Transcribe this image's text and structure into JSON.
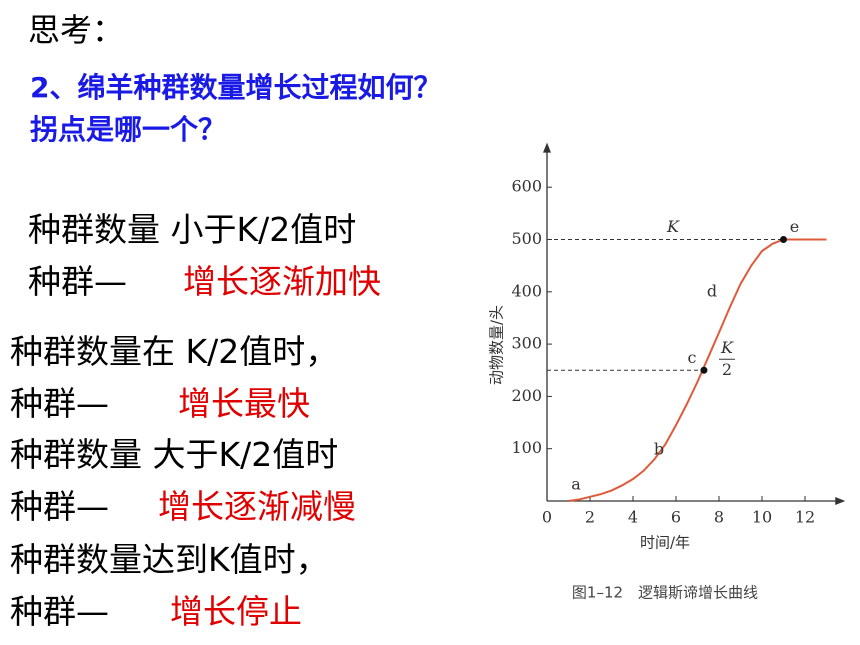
{
  "heading": "思考：",
  "question": [
    "2、绵羊种群数量增长过程如何？",
    "拐点是哪一个？"
  ],
  "statements": [
    {
      "condition": "种群数量 小于K/2值时",
      "prefix": "种群—",
      "result": "增长逐渐加快"
    },
    {
      "condition": "种群数量在 K/2值时，",
      "prefix": "种群—",
      "result": "增长最快"
    },
    {
      "condition": "种群数量 大于K/2值时",
      "prefix": "种群—",
      "result": "增长逐渐减慢"
    },
    {
      "condition": "种群数量达到K值时，",
      "prefix": "种群—",
      "result": "增长停止"
    }
  ],
  "chart_data": {
    "type": "line",
    "x_label": "时间/年",
    "y_label": "动物数量/头",
    "caption": "图1–12　逻辑斯谛增长曲线",
    "x": [
      1,
      1.5,
      2,
      2.5,
      3,
      3.5,
      4,
      4.5,
      5,
      5.5,
      6,
      6.5,
      7,
      7.5,
      8,
      8.5,
      9,
      9.5,
      10,
      10.5,
      11,
      11.5,
      12,
      12.5,
      13
    ],
    "values": [
      0,
      3,
      8,
      13,
      20,
      30,
      42,
      58,
      80,
      108,
      145,
      185,
      228,
      275,
      322,
      370,
      415,
      450,
      478,
      492,
      500,
      500,
      500,
      500,
      500
    ],
    "color": "#e05a3a",
    "xlim": [
      0,
      13.5
    ],
    "ylim": [
      0,
      670
    ],
    "xticks": [
      0,
      2,
      4,
      6,
      8,
      10,
      12
    ],
    "yticks": [
      100,
      200,
      300,
      400,
      500,
      600
    ],
    "points": [
      {
        "label": "c",
        "x": 7.3,
        "y": 250
      },
      {
        "label": "e",
        "x": 11,
        "y": 500
      }
    ],
    "reference_lines": [
      {
        "label": "K",
        "value": 500
      },
      {
        "label": [
          "K",
          "2"
        ],
        "value": 250
      }
    ],
    "annotations": [
      "a",
      "b",
      "d"
    ]
  }
}
